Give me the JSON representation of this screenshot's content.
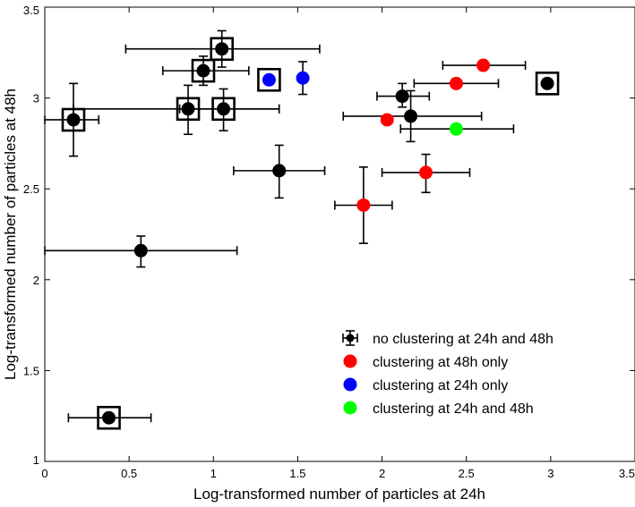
{
  "chart_data": {
    "type": "scatter",
    "title": "",
    "xlabel": "Log-transformed number of particles at 24h",
    "ylabel": "Log-transformed number of particles at 48h",
    "xlim": [
      0,
      3.5
    ],
    "ylim": [
      1,
      3.5
    ],
    "xticks": [
      0,
      0.5,
      1,
      1.5,
      2,
      2.5,
      3,
      3.5
    ],
    "yticks": [
      1,
      1.5,
      2,
      2.5,
      3,
      3.5
    ],
    "xtick_labels": [
      "0",
      "0.5",
      "1",
      "1.5",
      "2",
      "2.5",
      "3",
      "3.5"
    ],
    "ytick_labels": [
      "1",
      "1.5",
      "2",
      "2.5",
      "3",
      "3.5"
    ],
    "grid": false,
    "legend_position": "lower-right",
    "series": [
      {
        "name": "no clustering at 24h and 48h",
        "color": "#000000",
        "points": [
          {
            "x": 0.38,
            "y": 1.24,
            "xerr_low": 0.24,
            "xerr_high": 0.25,
            "boxed": true
          },
          {
            "x": 0.17,
            "y": 2.88,
            "xerr_low": 0.17,
            "xerr_high": 0.15,
            "yerr_low": 0.2,
            "yerr_high": 0.2,
            "boxed": true
          },
          {
            "x": 0.57,
            "y": 2.16,
            "xerr_low": 0.57,
            "xerr_high": 0.57,
            "yerr_low": 0.09,
            "yerr_high": 0.08
          },
          {
            "x": 0.85,
            "y": 2.94,
            "xerr_low": 0.68,
            "xerr_high": 0.54,
            "yerr_low": 0.14,
            "yerr_high": 0.13,
            "boxed": true
          },
          {
            "x": 0.94,
            "y": 3.15,
            "xerr_low": 0.24,
            "xerr_high": 0.27,
            "yerr_low": 0.08,
            "yerr_high": 0.08,
            "boxed": true
          },
          {
            "x": 1.05,
            "y": 3.27,
            "xerr_low": 0.57,
            "xerr_high": 0.58,
            "yerr_low": 0.1,
            "yerr_high": 0.1,
            "boxed": true
          },
          {
            "x": 1.06,
            "y": 2.94,
            "xerr_low": 0.26,
            "xerr_high": 0.33,
            "yerr_low": 0.12,
            "yerr_high": 0.11,
            "boxed": true
          },
          {
            "x": 1.39,
            "y": 2.6,
            "xerr_low": 0.27,
            "xerr_high": 0.27,
            "yerr_low": 0.15,
            "yerr_high": 0.14
          },
          {
            "x": 2.12,
            "y": 3.01,
            "xerr_low": 0.15,
            "xerr_high": 0.16,
            "yerr_low": 0.06,
            "yerr_high": 0.07
          },
          {
            "x": 2.17,
            "y": 2.9,
            "xerr_low": 0.4,
            "xerr_high": 0.42,
            "yerr_low": 0.14,
            "yerr_high": 0.14
          },
          {
            "x": 2.98,
            "y": 3.08,
            "boxed": true
          }
        ]
      },
      {
        "name": "clustering at 48h only",
        "color": "#ff0000",
        "points": [
          {
            "x": 1.89,
            "y": 2.41,
            "xerr_low": 0.17,
            "xerr_high": 0.17,
            "yerr_low": 0.21,
            "yerr_high": 0.21
          },
          {
            "x": 2.03,
            "y": 2.88
          },
          {
            "x": 2.26,
            "y": 2.59,
            "xerr_low": 0.26,
            "xerr_high": 0.26,
            "yerr_low": 0.11,
            "yerr_high": 0.1
          },
          {
            "x": 2.44,
            "y": 3.08,
            "xerr_low": 0.25,
            "xerr_high": 0.25
          },
          {
            "x": 2.6,
            "y": 3.18,
            "xerr_low": 0.24,
            "xerr_high": 0.25
          }
        ]
      },
      {
        "name": "clustering at 24h only",
        "color": "#0000ff",
        "points": [
          {
            "x": 1.33,
            "y": 3.1,
            "boxed": true
          },
          {
            "x": 1.53,
            "y": 3.11,
            "yerr_low": 0.09,
            "yerr_high": 0.09
          }
        ]
      },
      {
        "name": "clustering at 24h and 48h",
        "color": "#00ff00",
        "points": [
          {
            "x": 2.44,
            "y": 2.83,
            "xerr_low": 0.33,
            "xerr_high": 0.34
          }
        ]
      }
    ]
  }
}
